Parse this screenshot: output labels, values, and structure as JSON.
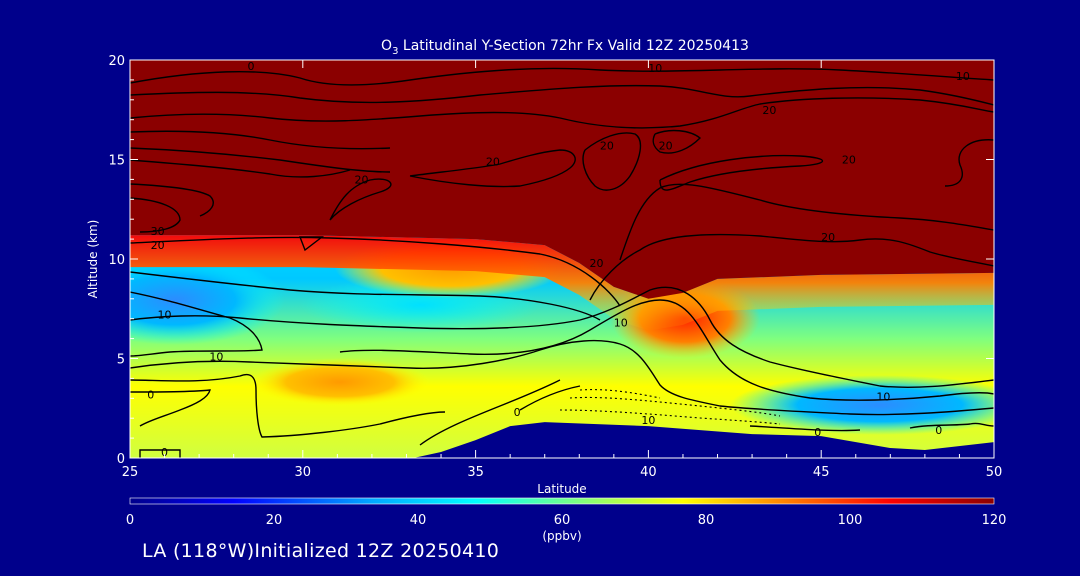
{
  "colors": {
    "background": "#00008b",
    "text": "#ffffff",
    "contour": "#000000",
    "terrain": "#00008b",
    "colorbar_stops": [
      "#00008b",
      "#0000ff",
      "#00a8ff",
      "#00ffff",
      "#7fff7f",
      "#ffff00",
      "#ff8000",
      "#ff0000",
      "#8b0000"
    ]
  },
  "chart_data": {
    "type": "contour",
    "title": "O3 Latitudinal Y-Section 72hr  Fx Valid 12Z 20250413",
    "title_parts": {
      "pre": "O",
      "sub": "3",
      "post": " Latitudinal Y-Section 72hr  Fx Valid 12Z 20250413"
    },
    "xlabel": "Latitude",
    "ylabel": "Altitude (km)",
    "xlim": [
      25,
      50
    ],
    "ylim": [
      0,
      20
    ],
    "x_ticks": [
      "25",
      "30",
      "35",
      "40",
      "45",
      "50"
    ],
    "y_ticks": [
      "0",
      "5",
      "10",
      "15",
      "20"
    ],
    "colorbar": {
      "range": [
        0,
        120
      ],
      "ticks": [
        "0",
        "20",
        "40",
        "60",
        "80",
        "100",
        "120"
      ],
      "units": "(ppbv)"
    },
    "stratosphere_boundary_km": [
      [
        25,
        11.2
      ],
      [
        30,
        11.2
      ],
      [
        35,
        11.0
      ],
      [
        37,
        10.7
      ],
      [
        38,
        9.8
      ],
      [
        39,
        8.6
      ],
      [
        40,
        8.0
      ],
      [
        41,
        8.3
      ],
      [
        42,
        9.0
      ],
      [
        45,
        9.2
      ],
      [
        50,
        9.3
      ]
    ],
    "terrain_top_km": [
      [
        33.2,
        0
      ],
      [
        34,
        0.3
      ],
      [
        35,
        0.9
      ],
      [
        36,
        1.6
      ],
      [
        37,
        1.8
      ],
      [
        40,
        1.6
      ],
      [
        43,
        1.2
      ],
      [
        45,
        1.1
      ],
      [
        47,
        0.5
      ],
      [
        48,
        0.4
      ],
      [
        50,
        0.8
      ]
    ],
    "contour_labels": [
      {
        "text": "0",
        "lat": 28.5,
        "alt": 19.7
      },
      {
        "text": "10",
        "lat": 40.2,
        "alt": 19.6
      },
      {
        "text": "10",
        "lat": 49.1,
        "alt": 19.2
      },
      {
        "text": "20",
        "lat": 43.5,
        "alt": 17.5
      },
      {
        "text": "20",
        "lat": 38.8,
        "alt": 15.7
      },
      {
        "text": "20",
        "lat": 40.5,
        "alt": 15.7
      },
      {
        "text": "20",
        "lat": 35.5,
        "alt": 14.9
      },
      {
        "text": "20",
        "lat": 45.8,
        "alt": 15.0
      },
      {
        "text": "20",
        "lat": 31.7,
        "alt": 14.0
      },
      {
        "text": "20",
        "lat": 45.2,
        "alt": 11.1
      },
      {
        "text": "20",
        "lat": 38.5,
        "alt": 9.8
      },
      {
        "text": "30",
        "lat": 25.8,
        "alt": 11.4
      },
      {
        "text": "20",
        "lat": 25.8,
        "alt": 10.7
      },
      {
        "text": "10",
        "lat": 26.0,
        "alt": 7.2
      },
      {
        "text": "10",
        "lat": 39.2,
        "alt": 6.8
      },
      {
        "text": "10",
        "lat": 27.5,
        "alt": 5.1
      },
      {
        "text": "0",
        "lat": 25.6,
        "alt": 3.2
      },
      {
        "text": "10",
        "lat": 40.0,
        "alt": 1.9
      },
      {
        "text": "10",
        "lat": 46.8,
        "alt": 3.1
      },
      {
        "text": "0",
        "lat": 36.2,
        "alt": 2.3
      },
      {
        "text": "0",
        "lat": 44.9,
        "alt": 1.3
      },
      {
        "text": "0",
        "lat": 48.4,
        "alt": 1.4
      },
      {
        "text": "0",
        "lat": 26.0,
        "alt": 0.3
      }
    ]
  },
  "footer": {
    "text": "LA (118°W)Initialized 12Z 20250410"
  }
}
